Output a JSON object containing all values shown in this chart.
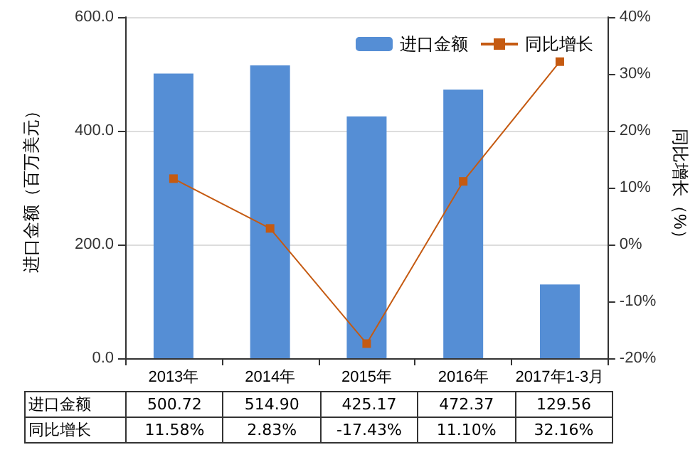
{
  "chart_data": {
    "type": "bar",
    "ylabel": "进口金额（百万美元）",
    "y2label": "同比增长（%）",
    "categories": [
      "2013年",
      "2014年",
      "2015年",
      "2016年",
      "2017年1-3月"
    ],
    "series": [
      {
        "name": "进口金额",
        "color": "#558ed5",
        "values": [
          500.72,
          514.9,
          425.17,
          472.37,
          129.56
        ],
        "value_labels": [
          "500.72",
          "514.90",
          "425.17",
          "472.37",
          "129.56"
        ]
      },
      {
        "name": "同比增长",
        "type": "line",
        "axis": "y2",
        "color": "#c55a11",
        "marker": "square",
        "values": [
          11.58,
          2.83,
          -17.43,
          11.1,
          32.16
        ],
        "value_labels": [
          "11.58%",
          "2.83%",
          "-17.43%",
          "11.10%",
          "32.16%"
        ]
      }
    ],
    "ylim": [
      0,
      600
    ],
    "yticks": [
      {
        "value": 0,
        "label": "0.0"
      },
      {
        "value": 200,
        "label": "200.0"
      },
      {
        "value": 400,
        "label": "400.0"
      },
      {
        "value": 600,
        "label": "600.0"
      }
    ],
    "y2lim": [
      -20,
      40
    ],
    "y2ticks": [
      {
        "value": -20,
        "label": "-20%"
      },
      {
        "value": -10,
        "label": "-10%"
      },
      {
        "value": 0,
        "label": "0%"
      },
      {
        "value": 10,
        "label": "10%"
      },
      {
        "value": 20,
        "label": "20%"
      },
      {
        "value": 30,
        "label": "30%"
      },
      {
        "value": 40,
        "label": "40%"
      }
    ],
    "grid": "y",
    "legend": "top right"
  }
}
